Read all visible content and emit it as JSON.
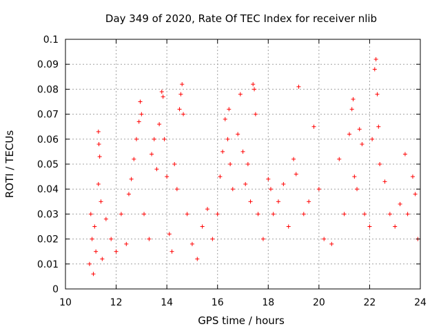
{
  "chart_data": {
    "type": "scatter",
    "title": "Day 349 of 2020, Rate Of TEC Index for receiver nlib",
    "xlabel": "GPS time / hours",
    "ylabel": "ROTI / TECUs",
    "xlim": [
      10,
      24
    ],
    "ylim": [
      0,
      0.1
    ],
    "x_ticks": [
      "10",
      "12",
      "14",
      "16",
      "18",
      "20",
      "22",
      "24"
    ],
    "y_ticks": [
      "0",
      "0.01",
      "0.02",
      "0.03",
      "0.04",
      "0.05",
      "0.06",
      "0.07",
      "0.08",
      "0.09",
      "0.1"
    ],
    "grid": true,
    "marker": "+",
    "color": "#ff0000",
    "series": [
      {
        "points": [
          [
            10.95,
            0.01
          ],
          [
            11.0,
            0.03
          ],
          [
            11.05,
            0.02
          ],
          [
            11.1,
            0.006
          ],
          [
            11.15,
            0.025
          ],
          [
            11.2,
            0.015
          ],
          [
            11.3,
            0.063
          ],
          [
            11.32,
            0.058
          ],
          [
            11.35,
            0.053
          ],
          [
            11.3,
            0.042
          ],
          [
            11.4,
            0.035
          ],
          [
            11.45,
            0.012
          ],
          [
            11.6,
            0.028
          ],
          [
            11.8,
            0.02
          ],
          [
            12.0,
            0.015
          ],
          [
            12.2,
            0.03
          ],
          [
            12.4,
            0.018
          ],
          [
            12.5,
            0.038
          ],
          [
            12.6,
            0.044
          ],
          [
            12.7,
            0.052
          ],
          [
            12.8,
            0.06
          ],
          [
            12.9,
            0.067
          ],
          [
            12.95,
            0.075
          ],
          [
            13.0,
            0.07
          ],
          [
            13.1,
            0.03
          ],
          [
            13.3,
            0.02
          ],
          [
            13.4,
            0.054
          ],
          [
            13.5,
            0.06
          ],
          [
            13.6,
            0.048
          ],
          [
            13.7,
            0.066
          ],
          [
            13.8,
            0.079
          ],
          [
            13.85,
            0.077
          ],
          [
            13.9,
            0.06
          ],
          [
            14.0,
            0.045
          ],
          [
            14.1,
            0.022
          ],
          [
            14.2,
            0.015
          ],
          [
            14.3,
            0.05
          ],
          [
            14.4,
            0.04
          ],
          [
            14.5,
            0.072
          ],
          [
            14.55,
            0.078
          ],
          [
            14.6,
            0.082
          ],
          [
            14.65,
            0.07
          ],
          [
            14.8,
            0.03
          ],
          [
            15.0,
            0.018
          ],
          [
            15.2,
            0.012
          ],
          [
            15.4,
            0.025
          ],
          [
            15.6,
            0.032
          ],
          [
            15.8,
            0.02
          ],
          [
            16.0,
            0.03
          ],
          [
            16.1,
            0.045
          ],
          [
            16.2,
            0.055
          ],
          [
            16.3,
            0.068
          ],
          [
            16.4,
            0.06
          ],
          [
            16.45,
            0.072
          ],
          [
            16.5,
            0.05
          ],
          [
            16.6,
            0.04
          ],
          [
            16.8,
            0.062
          ],
          [
            16.9,
            0.078
          ],
          [
            17.0,
            0.055
          ],
          [
            17.1,
            0.042
          ],
          [
            17.2,
            0.05
          ],
          [
            17.3,
            0.035
          ],
          [
            17.4,
            0.082
          ],
          [
            17.45,
            0.08
          ],
          [
            17.5,
            0.07
          ],
          [
            17.6,
            0.03
          ],
          [
            17.8,
            0.02
          ],
          [
            18.0,
            0.044
          ],
          [
            18.1,
            0.04
          ],
          [
            18.2,
            0.03
          ],
          [
            18.4,
            0.035
          ],
          [
            18.6,
            0.042
          ],
          [
            18.8,
            0.025
          ],
          [
            19.0,
            0.052
          ],
          [
            19.1,
            0.046
          ],
          [
            19.2,
            0.081
          ],
          [
            19.4,
            0.03
          ],
          [
            19.6,
            0.035
          ],
          [
            19.8,
            0.065
          ],
          [
            20.0,
            0.04
          ],
          [
            20.2,
            0.02
          ],
          [
            20.5,
            0.018
          ],
          [
            20.8,
            0.052
          ],
          [
            21.0,
            0.03
          ],
          [
            21.2,
            0.062
          ],
          [
            21.3,
            0.072
          ],
          [
            21.35,
            0.076
          ],
          [
            21.4,
            0.045
          ],
          [
            21.5,
            0.04
          ],
          [
            21.6,
            0.064
          ],
          [
            21.7,
            0.058
          ],
          [
            21.8,
            0.03
          ],
          [
            22.0,
            0.025
          ],
          [
            22.1,
            0.06
          ],
          [
            22.2,
            0.088
          ],
          [
            22.25,
            0.092
          ],
          [
            22.3,
            0.078
          ],
          [
            22.35,
            0.065
          ],
          [
            22.4,
            0.05
          ],
          [
            22.6,
            0.043
          ],
          [
            22.8,
            0.03
          ],
          [
            23.0,
            0.025
          ],
          [
            23.2,
            0.034
          ],
          [
            23.4,
            0.054
          ],
          [
            23.5,
            0.03
          ],
          [
            23.7,
            0.045
          ],
          [
            23.8,
            0.038
          ],
          [
            23.9,
            0.02
          ]
        ]
      }
    ]
  }
}
